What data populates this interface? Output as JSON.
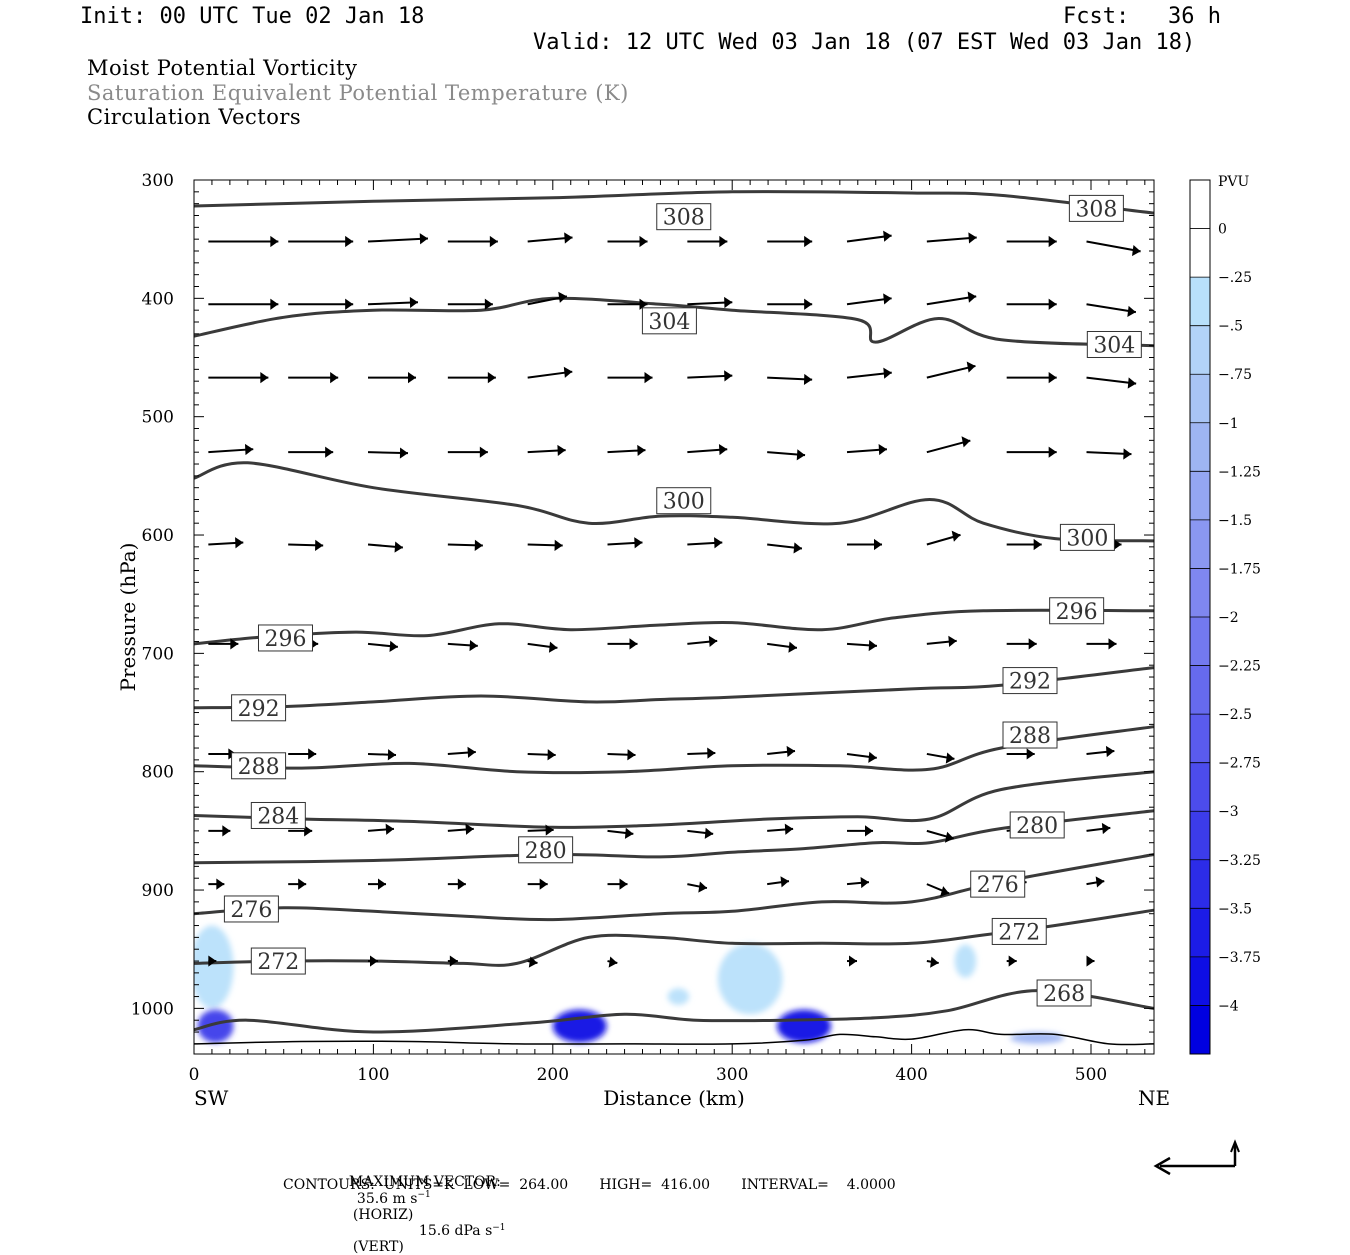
{
  "header": {
    "init": "Init: 00 UTC Tue 02 Jan 18",
    "fcst_label": "Fcst:",
    "fcst_value": "36 h",
    "valid": "Valid: 12 UTC Wed 03 Jan 18 (07 EST Wed 03 Jan 18)"
  },
  "titles": {
    "line1": "Moist Potential Vorticity",
    "line2": "Saturation Equivalent Potential Temperature (K)",
    "line3": "Circulation Vectors"
  },
  "footer": {
    "max_label": "MAXIMUM VECTOR:",
    "horiz_val": "35.6 m s",
    "horiz_tag": "(HORIZ)",
    "vert_val": "15.6 dPa s",
    "vert_tag": "(VERT)",
    "exp": "−1",
    "contours": "CONTOURS:  UNITS=K  LOW=  264.00       HIGH=  416.00       INTERVAL=    4.0000"
  },
  "chart_data": {
    "type": "cross-section",
    "xlabel": "Distance (km)",
    "ylabel": "Pressure (hPa)",
    "x_left_label": "SW",
    "x_right_label": "NE",
    "xlim": [
      0,
      535
    ],
    "ylim": [
      300,
      1037
    ],
    "xticks": [
      "0",
      "100",
      "200",
      "300",
      "400",
      "500"
    ],
    "xtick_values": [
      0,
      100,
      200,
      300,
      400,
      500
    ],
    "yticks": [
      "300",
      "400",
      "500",
      "600",
      "700",
      "800",
      "900",
      "1000"
    ],
    "ytick_values": [
      300,
      400,
      500,
      600,
      700,
      800,
      900,
      1000
    ],
    "contours": [
      {
        "level": "308",
        "points": [
          [
            0,
            322
          ],
          [
            100,
            318
          ],
          [
            200,
            315
          ],
          [
            300,
            310
          ],
          [
            400,
            311
          ],
          [
            450,
            313
          ],
          [
            535,
            328
          ]
        ],
        "labels": [
          [
            273,
            331
          ],
          [
            503,
            324
          ]
        ]
      },
      {
        "level": "304",
        "points": [
          [
            0,
            432
          ],
          [
            50,
            416
          ],
          [
            100,
            410
          ],
          [
            160,
            410
          ],
          [
            200,
            400
          ],
          [
            260,
            405
          ],
          [
            300,
            410
          ],
          [
            370,
            418
          ],
          [
            380,
            437
          ],
          [
            415,
            417
          ],
          [
            450,
            435
          ],
          [
            535,
            440
          ]
        ],
        "labels": [
          [
            265,
            419
          ],
          [
            513,
            439
          ]
        ]
      },
      {
        "level": "300",
        "points": [
          [
            0,
            552
          ],
          [
            30,
            539
          ],
          [
            100,
            560
          ],
          [
            180,
            575
          ],
          [
            220,
            590
          ],
          [
            260,
            584
          ],
          [
            300,
            585
          ],
          [
            360,
            590
          ],
          [
            410,
            570
          ],
          [
            440,
            590
          ],
          [
            480,
            603
          ],
          [
            535,
            605
          ]
        ],
        "labels": [
          [
            273,
            571
          ],
          [
            498,
            602
          ]
        ]
      },
      {
        "level": "296",
        "points": [
          [
            0,
            692
          ],
          [
            40,
            686
          ],
          [
            90,
            682
          ],
          [
            130,
            685
          ],
          [
            170,
            675
          ],
          [
            210,
            680
          ],
          [
            260,
            676
          ],
          [
            300,
            674
          ],
          [
            350,
            680
          ],
          [
            390,
            670
          ],
          [
            440,
            664
          ],
          [
            535,
            664
          ]
        ],
        "labels": [
          [
            51,
            687
          ],
          [
            492,
            664
          ]
        ]
      },
      {
        "level": "292",
        "points": [
          [
            0,
            746
          ],
          [
            50,
            745
          ],
          [
            100,
            741
          ],
          [
            160,
            736
          ],
          [
            220,
            741
          ],
          [
            260,
            739
          ],
          [
            300,
            737
          ],
          [
            400,
            730
          ],
          [
            450,
            727
          ],
          [
            535,
            712
          ]
        ],
        "labels": [
          [
            36,
            746
          ],
          [
            466,
            723
          ]
        ]
      },
      {
        "level": "288",
        "points": [
          [
            0,
            795
          ],
          [
            60,
            797
          ],
          [
            120,
            793
          ],
          [
            180,
            800
          ],
          [
            240,
            800
          ],
          [
            300,
            795
          ],
          [
            360,
            795
          ],
          [
            410,
            798
          ],
          [
            450,
            780
          ],
          [
            535,
            762
          ]
        ],
        "labels": [
          [
            36,
            795
          ],
          [
            466,
            769
          ]
        ]
      },
      {
        "level": "284",
        "points": [
          [
            0,
            837
          ],
          [
            60,
            840
          ],
          [
            120,
            842
          ],
          [
            200,
            847
          ],
          [
            260,
            845
          ],
          [
            320,
            840
          ],
          [
            370,
            838
          ],
          [
            410,
            840
          ],
          [
            450,
            815
          ],
          [
            535,
            800
          ]
        ],
        "labels": [
          [
            47,
            837
          ]
        ]
      },
      {
        "level": "280",
        "points": [
          [
            0,
            877
          ],
          [
            100,
            875
          ],
          [
            200,
            870
          ],
          [
            260,
            872
          ],
          [
            300,
            868
          ],
          [
            340,
            865
          ],
          [
            380,
            860
          ],
          [
            410,
            860
          ],
          [
            450,
            848
          ],
          [
            535,
            833
          ]
        ],
        "labels": [
          [
            196,
            866
          ],
          [
            470,
            845
          ]
        ]
      },
      {
        "level": "276",
        "points": [
          [
            0,
            920
          ],
          [
            50,
            915
          ],
          [
            100,
            918
          ],
          [
            150,
            922
          ],
          [
            200,
            925
          ],
          [
            260,
            920
          ],
          [
            300,
            918
          ],
          [
            350,
            910
          ],
          [
            400,
            910
          ],
          [
            450,
            893
          ],
          [
            535,
            870
          ]
        ],
        "labels": [
          [
            32,
            916
          ],
          [
            448,
            895
          ]
        ]
      },
      {
        "level": "272",
        "points": [
          [
            0,
            962
          ],
          [
            50,
            960
          ],
          [
            100,
            960
          ],
          [
            150,
            962
          ],
          [
            180,
            962
          ],
          [
            220,
            940
          ],
          [
            260,
            940
          ],
          [
            300,
            945
          ],
          [
            350,
            945
          ],
          [
            400,
            945
          ],
          [
            440,
            938
          ],
          [
            480,
            930
          ],
          [
            535,
            917
          ]
        ],
        "labels": [
          [
            47,
            960
          ],
          [
            460,
            935
          ]
        ]
      },
      {
        "level": "268",
        "points": [
          [
            0,
            1018
          ],
          [
            30,
            1010
          ],
          [
            100,
            1020
          ],
          [
            190,
            1012
          ],
          [
            240,
            1005
          ],
          [
            280,
            1010
          ],
          [
            330,
            1010
          ],
          [
            380,
            1008
          ],
          [
            420,
            1002
          ],
          [
            470,
            985
          ],
          [
            535,
            1000
          ]
        ],
        "labels": [
          [
            485,
            987
          ]
        ]
      }
    ],
    "pv_regions": [
      {
        "x": 10,
        "p": 965,
        "rx": 12,
        "rp": 35,
        "value": -0.3
      },
      {
        "x": 12,
        "p": 1015,
        "rx": 10,
        "rp": 14,
        "value": -3.0
      },
      {
        "x": 215,
        "p": 1015,
        "rx": 15,
        "rp": 14,
        "value": -3.8
      },
      {
        "x": 310,
        "p": 975,
        "rx": 18,
        "rp": 30,
        "value": -0.3
      },
      {
        "x": 340,
        "p": 1015,
        "rx": 15,
        "rp": 14,
        "value": -3.8
      },
      {
        "x": 270,
        "p": 990,
        "rx": 6,
        "rp": 7,
        "value": -0.3
      },
      {
        "x": 430,
        "p": 960,
        "rx": 6,
        "rp": 14,
        "value": -0.3
      },
      {
        "x": 470,
        "p": 1025,
        "rx": 15,
        "rp": 5,
        "value": -1.0
      }
    ],
    "vector_max_horizontal": 35.6,
    "vector_max_vertical": 15.6,
    "colorbar": {
      "units": "PVU",
      "levels": [
        "0",
        "−.25",
        "−.5",
        "−.75",
        "−1",
        "−1.25",
        "−1.5",
        "−1.75",
        "−2",
        "−2.25",
        "−2.5",
        "−2.75",
        "−3",
        "−3.25",
        "−3.5",
        "−3.75",
        "−4"
      ],
      "colors": [
        "#ffffff",
        "#ffffff",
        "#b8e0fb",
        "#b2d3f8",
        "#a8c4f5",
        "#9eb5f3",
        "#94a6f2",
        "#8a97f1",
        "#7f87f0",
        "#7379ef",
        "#666aee",
        "#5a5bed",
        "#4c4cec",
        "#3c3cea",
        "#2c2ce8",
        "#1c1ce6",
        "#0e0ee4",
        "#0000e0"
      ]
    },
    "contour_units": "K",
    "contour_low": 264.0,
    "contour_high": 416.0,
    "contour_interval": 4.0
  }
}
